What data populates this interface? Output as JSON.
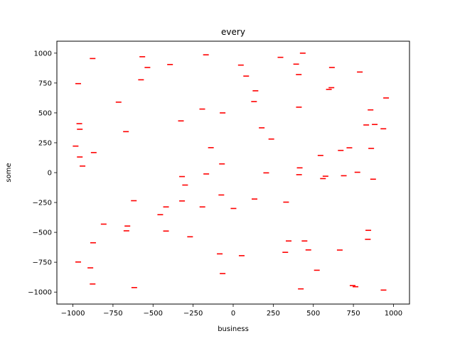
{
  "chart_data": {
    "type": "scatter",
    "title": "every",
    "xlabel": "business",
    "ylabel": "some",
    "xlim": [
      -1100,
      1100
    ],
    "ylim": [
      -1100,
      1100
    ],
    "xticks": [
      -1000,
      -750,
      -500,
      -250,
      0,
      250,
      500,
      750,
      1000
    ],
    "yticks": [
      -1000,
      -750,
      -500,
      -250,
      0,
      250,
      500,
      750,
      1000
    ],
    "xtick_labels": [
      "−1000",
      "−750",
      "−500",
      "−250",
      "0",
      "250",
      "500",
      "750",
      "1000"
    ],
    "ytick_labels": [
      "−1000",
      "−750",
      "−500",
      "−250",
      "0",
      "250",
      "500",
      "750",
      "1000"
    ],
    "marker": "hline",
    "color": "#ff0000",
    "grid": false,
    "series": [
      {
        "points": [
          [
            -983,
            222
          ],
          [
            -967,
            745
          ],
          [
            -960,
            410
          ],
          [
            -957,
            363
          ],
          [
            -957,
            131
          ],
          [
            -940,
            55
          ],
          [
            -877,
            955
          ],
          [
            -870,
            168
          ],
          [
            -874,
            -587
          ],
          [
            -891,
            -797
          ],
          [
            -877,
            -932
          ],
          [
            -967,
            -748
          ],
          [
            -808,
            -431
          ],
          [
            -715,
            590
          ],
          [
            -669,
            343
          ],
          [
            -666,
            -487
          ],
          [
            -660,
            -447
          ],
          [
            -620,
            -235
          ],
          [
            -617,
            -962
          ],
          [
            -575,
            777
          ],
          [
            -567,
            970
          ],
          [
            -535,
            880
          ],
          [
            -455,
            -352
          ],
          [
            -419,
            -287
          ],
          [
            -419,
            -489
          ],
          [
            -394,
            905
          ],
          [
            -326,
            433
          ],
          [
            -319,
            -33
          ],
          [
            -319,
            -237
          ],
          [
            -300,
            -104
          ],
          [
            -269,
            -537
          ],
          [
            -193,
            532
          ],
          [
            -192,
            -287
          ],
          [
            -170,
            986
          ],
          [
            -168,
            -11
          ],
          [
            -139,
            209
          ],
          [
            -84,
            -680
          ],
          [
            -74,
            -187
          ],
          [
            -70,
            73
          ],
          [
            -66,
            500
          ],
          [
            -66,
            -845
          ],
          [
            2,
            -300
          ],
          [
            48,
            900
          ],
          [
            53,
            -695
          ],
          [
            81,
            808
          ],
          [
            130,
            595
          ],
          [
            139,
            685
          ],
          [
            133,
            -221
          ],
          [
            178,
            375
          ],
          [
            206,
            -2
          ],
          [
            238,
            281
          ],
          [
            295,
            965
          ],
          [
            325,
            -667
          ],
          [
            330,
            -247
          ],
          [
            346,
            -572
          ],
          [
            393,
            908
          ],
          [
            409,
            821
          ],
          [
            410,
            548
          ],
          [
            411,
            -17
          ],
          [
            415,
            40
          ],
          [
            422,
            -973
          ],
          [
            434,
            1000
          ],
          [
            445,
            -572
          ],
          [
            469,
            -647
          ],
          [
            522,
            -817
          ],
          [
            545,
            144
          ],
          [
            560,
            -50
          ],
          [
            576,
            -30
          ],
          [
            597,
            697
          ],
          [
            613,
            711
          ],
          [
            616,
            880
          ],
          [
            665,
            -648
          ],
          [
            671,
            186
          ],
          [
            690,
            -26
          ],
          [
            725,
            208
          ],
          [
            745,
            -945
          ],
          [
            775,
            3
          ],
          [
            763,
            -955
          ],
          [
            790,
            842
          ],
          [
            830,
            399
          ],
          [
            840,
            -558
          ],
          [
            843,
            -483
          ],
          [
            857,
            525
          ],
          [
            861,
            203
          ],
          [
            873,
            -55
          ],
          [
            883,
            403
          ],
          [
            937,
            367
          ],
          [
            938,
            -983
          ],
          [
            954,
            625
          ]
        ]
      }
    ]
  }
}
